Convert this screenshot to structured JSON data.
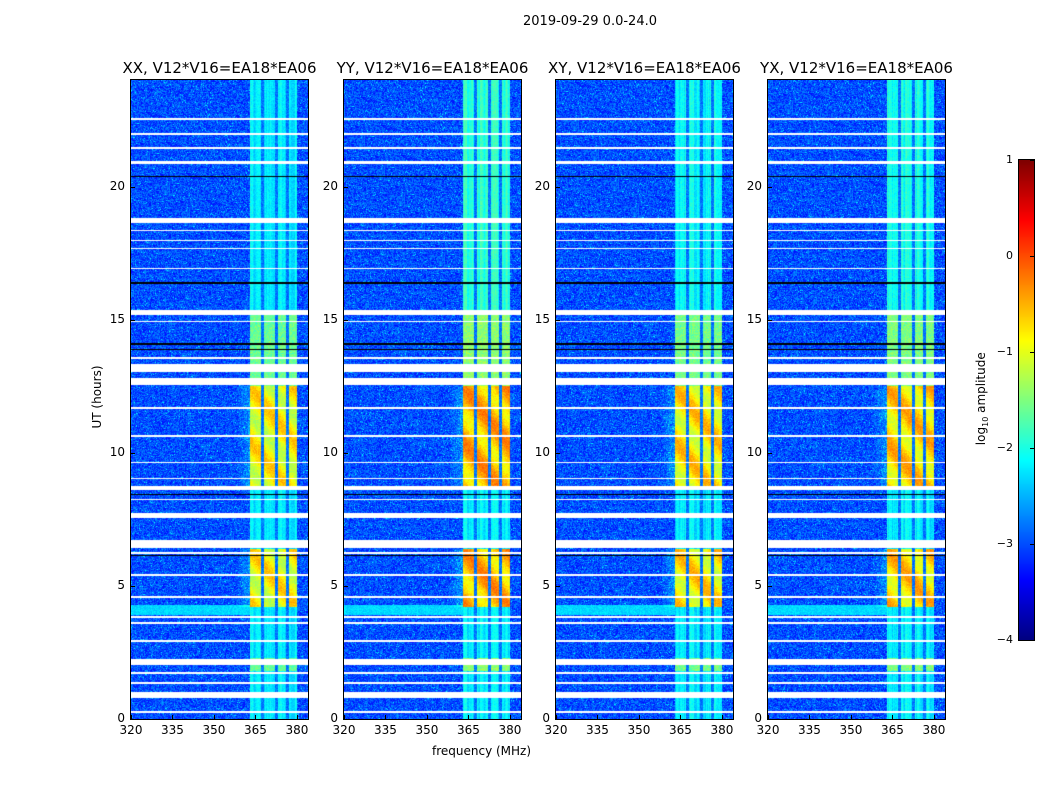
{
  "figure_title": "2019-09-29 0.0-24.0",
  "chart_data": {
    "type": "heatmap",
    "panels": [
      {
        "title": "XX, V12*V16=EA18*EA06",
        "rfi_gain": 0.0
      },
      {
        "title": "YY, V12*V16=EA18*EA06",
        "rfi_gain": 0.35
      },
      {
        "title": "XY, V12*V16=EA18*EA06",
        "rfi_gain": 0.1
      },
      {
        "title": "YX, V12*V16=EA18*EA06",
        "rfi_gain": 0.2
      }
    ],
    "xlabel": "frequency (MHz)",
    "ylabel": "UT (hours)",
    "xlim": [
      320,
      384
    ],
    "ylim": [
      0,
      24
    ],
    "xticks": [
      "320",
      "335",
      "350",
      "365",
      "380"
    ],
    "xtick_values": [
      320,
      335,
      350,
      365,
      380
    ],
    "yticks": [
      "0",
      "5",
      "10",
      "15",
      "20"
    ],
    "ytick_values": [
      0,
      5,
      10,
      15,
      20
    ],
    "colorbar": {
      "label": "log10 amplitude",
      "label_base": "log",
      "label_sub": "10",
      "label_rest": " amplitude",
      "colormap": "jet",
      "range": [
        -4,
        1
      ],
      "ticks": [
        "1",
        "0",
        "−1",
        "−2",
        "−3",
        "−4"
      ],
      "tick_values": [
        1,
        0,
        -1,
        -2,
        -3,
        -4
      ]
    },
    "background_level": -3.0,
    "rfi_band_mhz": [
      363,
      380
    ],
    "rfi_channel_gaps_mhz": [
      367.5,
      372.5,
      376.5
    ],
    "bright_periods_ut": [
      [
        4.2,
        6.4
      ],
      [
        8.7,
        12.5
      ]
    ],
    "moderate_periods_ut": [
      [
        12.5,
        15.3
      ],
      [
        1.8,
        2.3
      ]
    ],
    "flagged_ut": [
      [
        22.5,
        22.58
      ],
      [
        21.95,
        22.02
      ],
      [
        21.42,
        21.5
      ],
      [
        20.86,
        20.94
      ],
      [
        18.62,
        18.8
      ],
      [
        18.32,
        18.38
      ],
      [
        17.94,
        18.0
      ],
      [
        17.64,
        17.7
      ],
      [
        16.89,
        16.95
      ],
      [
        15.17,
        15.37
      ],
      [
        14.9,
        14.96
      ],
      [
        13.52,
        13.58
      ],
      [
        13.02,
        13.32
      ],
      [
        12.56,
        12.8
      ],
      [
        11.64,
        11.7
      ],
      [
        10.59,
        10.65
      ],
      [
        9.61,
        9.67
      ],
      [
        9.01,
        9.07
      ],
      [
        8.6,
        8.74
      ],
      [
        8.22,
        8.28
      ],
      [
        7.55,
        7.75
      ],
      [
        6.42,
        6.72
      ],
      [
        6.2,
        6.26
      ],
      [
        5.37,
        5.43
      ],
      [
        4.55,
        4.61
      ],
      [
        3.8,
        3.86
      ],
      [
        3.57,
        3.63
      ],
      [
        2.9,
        2.96
      ],
      [
        2.04,
        2.24
      ],
      [
        1.7,
        1.76
      ],
      [
        1.32,
        1.38
      ],
      [
        0.78,
        1.02
      ],
      [
        0.23,
        0.29
      ]
    ],
    "zero_ut": [
      [
        20.35,
        20.4
      ],
      [
        16.34,
        16.4
      ],
      [
        14.05,
        14.12
      ],
      [
        13.85,
        13.9
      ],
      [
        8.4,
        8.45
      ],
      [
        6.12,
        6.17
      ]
    ]
  }
}
